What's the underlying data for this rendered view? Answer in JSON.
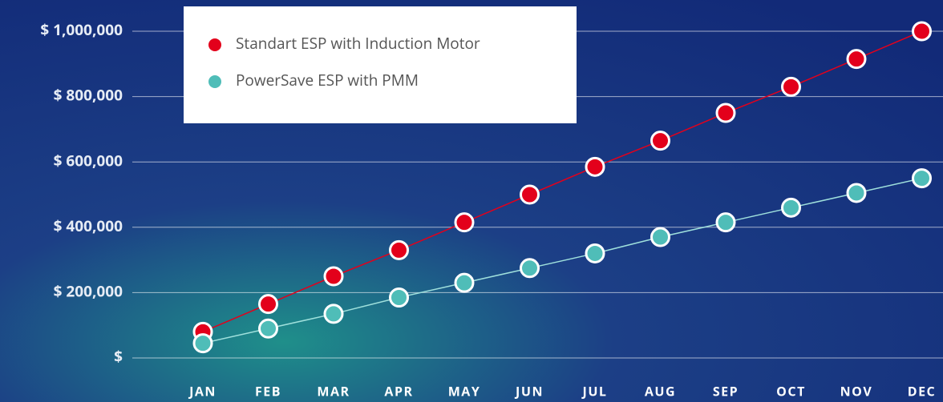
{
  "chart_data": {
    "type": "line",
    "categories": [
      "JAN",
      "FEB",
      "MAR",
      "APR",
      "MAY",
      "JUN",
      "JUL",
      "AUG",
      "SEP",
      "OCT",
      "NOV",
      "DEC"
    ],
    "series": [
      {
        "name": "Standart ESP with Induction Motor",
        "color": "#e3001b",
        "values": [
          80000,
          165000,
          250000,
          330000,
          415000,
          500000,
          585000,
          665000,
          750000,
          830000,
          915000,
          1000000
        ]
      },
      {
        "name": "PowerSave ESP with PMM",
        "color": "#4fbdb8",
        "values": [
          45000,
          90000,
          135000,
          185000,
          230000,
          275000,
          320000,
          370000,
          415000,
          460000,
          505000,
          550000
        ]
      }
    ],
    "ylim": [
      0,
      1000000
    ],
    "yticks": [
      {
        "value": 0,
        "label": "$"
      },
      {
        "value": 200000,
        "label": "$ 200,000"
      },
      {
        "value": 400000,
        "label": "$ 400,000"
      },
      {
        "value": 600000,
        "label": "$ 600,000"
      },
      {
        "value": 800000,
        "label": "$ 800,000"
      },
      {
        "value": 1000000,
        "label": "$ 1,000,000"
      }
    ],
    "grid": true
  }
}
